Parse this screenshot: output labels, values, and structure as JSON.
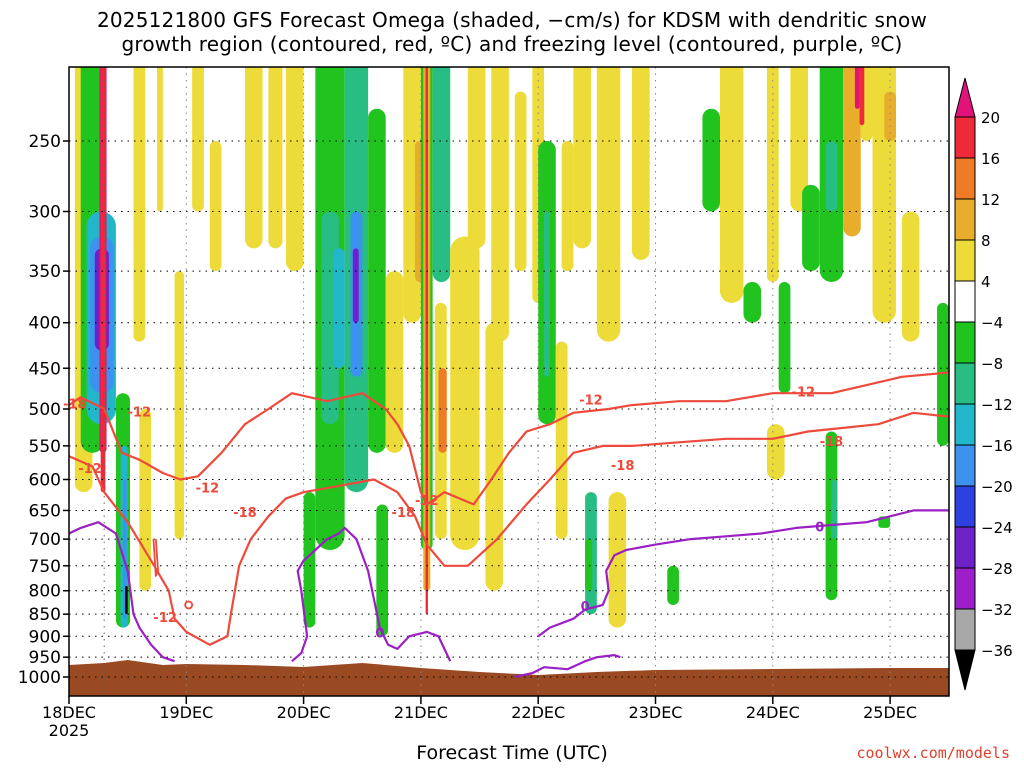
{
  "title_line1": "2025121800 GFS Forecast Omega (shaded, −cm/s) for KDSM with dendritic snow",
  "title_line2": "growth region (contoured, red, ºC) and freezing level (contoured, purple, ºC)",
  "credit": "coolwx.com/models",
  "chart_data": {
    "type": "heatmap",
    "xlabel": "Forecast Time (UTC)",
    "ylabel": "",
    "x_ticks": [
      "18DEC",
      "19DEC",
      "20DEC",
      "21DEC",
      "22DEC",
      "23DEC",
      "24DEC",
      "25DEC"
    ],
    "x_tick_sub": "2025",
    "x_range_days": [
      0,
      7.5
    ],
    "y_ticks": [
      250,
      300,
      350,
      400,
      450,
      500,
      550,
      600,
      650,
      700,
      750,
      800,
      850,
      900,
      950,
      1000
    ],
    "y_range_hpa": [
      200,
      1050
    ],
    "grid": true,
    "colorbar": {
      "labels": [
        "20",
        "16",
        "12",
        "8",
        "4",
        "−4",
        "−8",
        "−12",
        "−16",
        "−20",
        "−24",
        "−28",
        "−32",
        "−36"
      ],
      "colors": [
        "#ee2a3a",
        "#f07b26",
        "#e8ad2a",
        "#ecdb38",
        "#ffffff",
        "#21c41f",
        "#27bd83",
        "#22b6cb",
        "#3c92ee",
        "#2e40e0",
        "#6d22c8",
        "#9c1fc9",
        "#a8a8a8"
      ],
      "top_color": "#e0137a",
      "bottom_color": "#000000"
    },
    "ground_color": "#9a4a23",
    "dgz_labels": [
      "-12",
      "-18",
      "-12",
      "-18",
      "-12",
      "-18",
      "-12",
      "-12",
      "-18",
      "-12",
      "-18",
      "-12"
    ],
    "fzl_labels": [
      "0",
      "0",
      "0"
    ],
    "dgz_color": "#ee4a3c",
    "fzl_color": "#9a1fc4"
  }
}
